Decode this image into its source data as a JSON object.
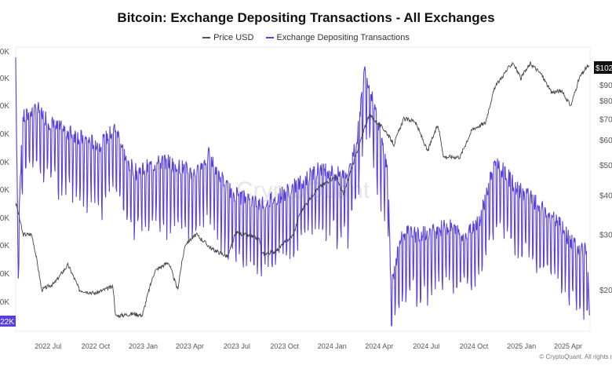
{
  "header": {
    "title": "Bitcoin: Exchange Depositing Transactions - All Exchanges"
  },
  "legend": {
    "price_label": "Price USD",
    "tx_label": "Exchange Depositing Transactions"
  },
  "colors": {
    "price": "#444444",
    "transactions": "#5a3fe0",
    "axis_text": "#555555",
    "current_price_bg": "#111111",
    "min_tx_bg": "#5a3fe0"
  },
  "footer": {
    "copyright": "© CryptoQuant. All rights reserv"
  },
  "chart_data": {
    "type": "line",
    "watermark": "CryptoQuant",
    "x_ticks": [
      "2022 Jul",
      "2022 Oct",
      "2023 Jan",
      "2023 Apr",
      "2023 Jul",
      "2023 Oct",
      "2024 Jan",
      "2024 Apr",
      "2024 Jul",
      "2024 Oct",
      "2025 Jan",
      "2025 Apr"
    ],
    "left_axis": {
      "ticks": [
        "0K",
        "0K",
        "0K",
        "0K",
        "0K",
        "0K",
        "0K",
        "0K",
        "0K",
        "0K"
      ],
      "min_badge": "22K"
    },
    "right_axis": {
      "scale": "log",
      "ticks": [
        "$90",
        "$80",
        "$70",
        "$60",
        "$50",
        "$40",
        "$30",
        "$20"
      ],
      "current_price_badge": "$102"
    },
    "series": [
      {
        "name": "Price USD",
        "axis": "right",
        "points": [
          [
            "2022-05-01",
            38000
          ],
          [
            "2022-05-15",
            30000
          ],
          [
            "2022-06-01",
            30000
          ],
          [
            "2022-06-20",
            20000
          ],
          [
            "2022-07-15",
            21000
          ],
          [
            "2022-08-10",
            24000
          ],
          [
            "2022-09-01",
            20000
          ],
          [
            "2022-10-01",
            19500
          ],
          [
            "2022-11-05",
            20500
          ],
          [
            "2022-11-10",
            16500
          ],
          [
            "2022-12-15",
            16800
          ],
          [
            "2023-01-01",
            16600
          ],
          [
            "2023-01-25",
            23000
          ],
          [
            "2023-02-20",
            24500
          ],
          [
            "2023-03-10",
            20000
          ],
          [
            "2023-03-25",
            28000
          ],
          [
            "2023-04-15",
            30000
          ],
          [
            "2023-05-15",
            27000
          ],
          [
            "2023-06-15",
            25500
          ],
          [
            "2023-07-01",
            30500
          ],
          [
            "2023-08-15",
            29000
          ],
          [
            "2023-08-20",
            26000
          ],
          [
            "2023-09-15",
            26500
          ],
          [
            "2023-10-20",
            30000
          ],
          [
            "2023-11-01",
            35000
          ],
          [
            "2023-12-05",
            42000
          ],
          [
            "2024-01-10",
            46000
          ],
          [
            "2024-01-25",
            40000
          ],
          [
            "2024-02-15",
            52000
          ],
          [
            "2024-03-01",
            62000
          ],
          [
            "2024-03-14",
            72000
          ],
          [
            "2024-04-15",
            64000
          ],
          [
            "2024-05-01",
            58000
          ],
          [
            "2024-05-20",
            70000
          ],
          [
            "2024-06-10",
            69000
          ],
          [
            "2024-07-05",
            55000
          ],
          [
            "2024-07-25",
            67000
          ],
          [
            "2024-08-05",
            53000
          ],
          [
            "2024-09-06",
            53000
          ],
          [
            "2024-09-30",
            65000
          ],
          [
            "2024-10-25",
            68000
          ],
          [
            "2024-11-12",
            88000
          ],
          [
            "2024-12-05",
            100000
          ],
          [
            "2024-12-17",
            106000
          ],
          [
            "2025-01-01",
            94000
          ],
          [
            "2025-01-20",
            105000
          ],
          [
            "2025-02-10",
            97000
          ],
          [
            "2025-03-01",
            85000
          ],
          [
            "2025-03-20",
            86000
          ],
          [
            "2025-04-08",
            77000
          ],
          [
            "2025-04-25",
            95000
          ],
          [
            "2025-05-10",
            103000
          ],
          [
            "2025-05-14",
            102000
          ]
        ]
      },
      {
        "name": "Exchange Depositing Transactions",
        "axis": "left",
        "points": [
          [
            "2022-05-01",
            96
          ],
          [
            "2022-05-05",
            34
          ],
          [
            "2022-05-15",
            75
          ],
          [
            "2022-06-15",
            78
          ],
          [
            "2022-07-15",
            72
          ],
          [
            "2022-08-15",
            70
          ],
          [
            "2022-09-15",
            67
          ],
          [
            "2022-10-15",
            66
          ],
          [
            "2022-11-10",
            72
          ],
          [
            "2022-12-01",
            60
          ],
          [
            "2022-12-20",
            56
          ],
          [
            "2023-01-15",
            58
          ],
          [
            "2023-02-15",
            60
          ],
          [
            "2023-03-15",
            58
          ],
          [
            "2023-04-15",
            55
          ],
          [
            "2023-05-08",
            62
          ],
          [
            "2023-06-15",
            50
          ],
          [
            "2023-07-15",
            47
          ],
          [
            "2023-08-15",
            45
          ],
          [
            "2023-09-15",
            47
          ],
          [
            "2023-10-15",
            50
          ],
          [
            "2023-11-15",
            54
          ],
          [
            "2023-12-15",
            58
          ],
          [
            "2024-01-10",
            55
          ],
          [
            "2024-02-01",
            56
          ],
          [
            "2024-02-20",
            68
          ],
          [
            "2024-03-05",
            92
          ],
          [
            "2024-03-25",
            80
          ],
          [
            "2024-04-20",
            55
          ],
          [
            "2024-04-25",
            15
          ],
          [
            "2024-05-15",
            35
          ],
          [
            "2024-06-15",
            34
          ],
          [
            "2024-07-15",
            35
          ],
          [
            "2024-08-15",
            37
          ],
          [
            "2024-09-15",
            33
          ],
          [
            "2024-10-15",
            40
          ],
          [
            "2024-11-12",
            60
          ],
          [
            "2024-12-05",
            55
          ],
          [
            "2024-12-25",
            50
          ],
          [
            "2025-01-15",
            48
          ],
          [
            "2025-02-15",
            42
          ],
          [
            "2025-03-15",
            38
          ],
          [
            "2025-04-15",
            30
          ],
          [
            "2025-05-10",
            28
          ],
          [
            "2025-05-14",
            7
          ]
        ]
      }
    ]
  }
}
